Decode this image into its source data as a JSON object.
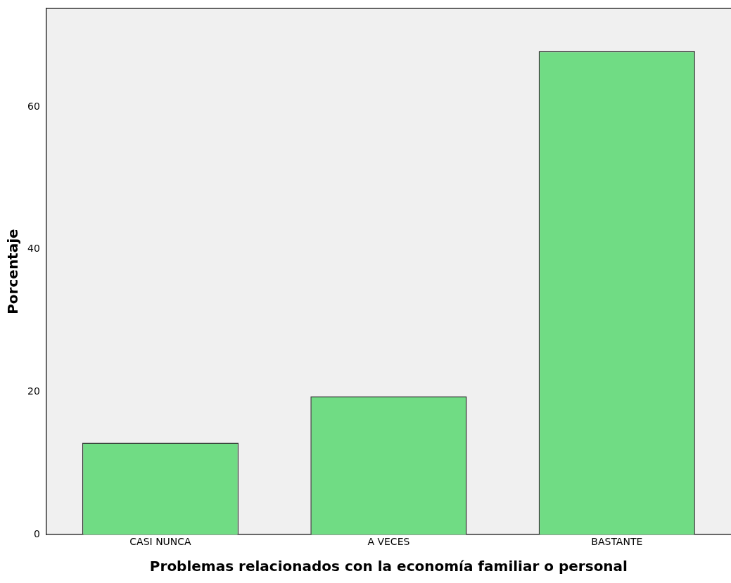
{
  "chart_data": {
    "type": "bar",
    "categories": [
      "CASI NUNCA",
      "A VECES",
      "BASTANTE"
    ],
    "values": [
      12.9,
      19.4,
      67.8
    ],
    "color": "#70dc84",
    "xlabel": "Problemas relacionados con la economía familiar o personal",
    "ylabel": "Porcentaje",
    "ylim": [
      0,
      73.8
    ],
    "yticks": [
      0,
      20,
      40,
      60
    ],
    "grid": false,
    "legend": false
  }
}
